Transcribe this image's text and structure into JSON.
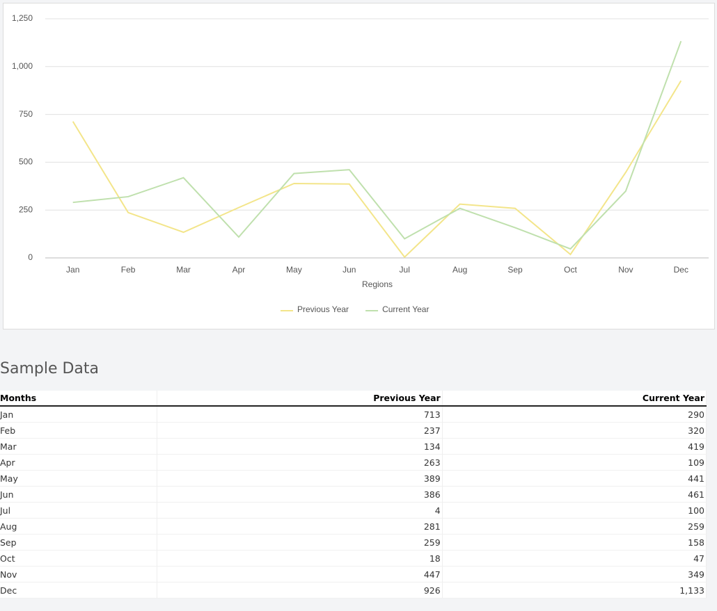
{
  "chart_data": {
    "type": "line",
    "x_label": "Regions",
    "categories": [
      "Jan",
      "Feb",
      "Mar",
      "Apr",
      "May",
      "Jun",
      "Jul",
      "Aug",
      "Sep",
      "Oct",
      "Nov",
      "Dec"
    ],
    "series": [
      {
        "name": "Previous Year",
        "color": "#f3e58a",
        "values": [
          713,
          237,
          134,
          263,
          389,
          386,
          4,
          281,
          259,
          18,
          447,
          926
        ]
      },
      {
        "name": "Current Year",
        "color": "#bfe0ad",
        "values": [
          290,
          320,
          419,
          109,
          441,
          461,
          100,
          259,
          158,
          47,
          349,
          1133
        ]
      }
    ],
    "ylim": [
      0,
      1250
    ],
    "yticks": [
      0,
      250,
      500,
      750,
      {
        "value": 1000,
        "label": "1,000"
      },
      {
        "value": 1250,
        "label": "1,250"
      }
    ],
    "grid": true,
    "legend": "bottom"
  },
  "table": {
    "title": "Sample Data",
    "columns": [
      "Months",
      "Previous Year",
      "Current Year"
    ],
    "rows": [
      [
        "Jan",
        "713",
        "290"
      ],
      [
        "Feb",
        "237",
        "320"
      ],
      [
        "Mar",
        "134",
        "419"
      ],
      [
        "Apr",
        "263",
        "109"
      ],
      [
        "May",
        "389",
        "441"
      ],
      [
        "Jun",
        "386",
        "461"
      ],
      [
        "Jul",
        "4",
        "100"
      ],
      [
        "Aug",
        "281",
        "259"
      ],
      [
        "Sep",
        "259",
        "158"
      ],
      [
        "Oct",
        "18",
        "47"
      ],
      [
        "Nov",
        "447",
        "349"
      ],
      [
        "Dec",
        "926",
        "1,133"
      ]
    ]
  }
}
